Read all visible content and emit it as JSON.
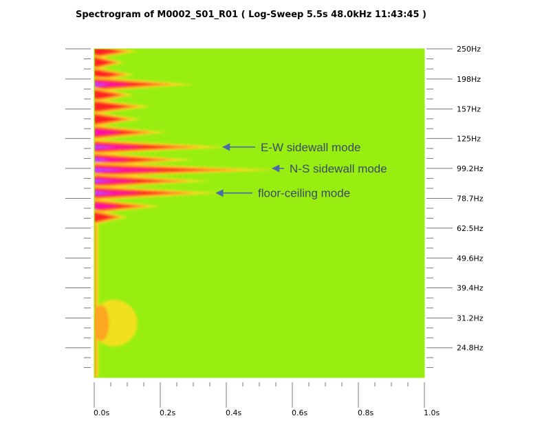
{
  "chart_data": {
    "type": "heatmap",
    "title": "Spectrogram of M0002_S01_R01 ( Log-Sweep 5.5s 48.0kHz 11:43:45 )",
    "xlabel": "",
    "ylabel": "",
    "x_ticks": [
      "0.0s",
      "0.2s",
      "0.4s",
      "0.6s",
      "0.8s",
      "1.0s"
    ],
    "x_tick_values": [
      0.0,
      0.2,
      0.4,
      0.6,
      0.8,
      1.0
    ],
    "xlim": [
      0.0,
      1.0
    ],
    "y_scale": "log",
    "y_ticks": [
      "250Hz",
      "198Hz",
      "157Hz",
      "125Hz",
      "99.2Hz",
      "78.7Hz",
      "62.5Hz",
      "49.6Hz",
      "39.4Hz",
      "31.2Hz",
      "24.8Hz"
    ],
    "y_tick_values": [
      250,
      198,
      157,
      125,
      99.2,
      78.7,
      62.5,
      49.6,
      39.4,
      31.2,
      24.8
    ],
    "ylim": [
      19.7,
      250
    ],
    "background_color": "#99ee11",
    "colors": {
      "floor": "#99ee11",
      "low": "#ffdd22",
      "mid": "#ff2222",
      "high": "#ff11aa",
      "peak": "#aa44ff"
    },
    "decay_ridges": [
      {
        "freq_hz": 245,
        "decay_s": 0.13
      },
      {
        "freq_hz": 225,
        "decay_s": 0.09
      },
      {
        "freq_hz": 205,
        "decay_s": 0.12
      },
      {
        "freq_hz": 190,
        "decay_s": 0.3
      },
      {
        "freq_hz": 175,
        "decay_s": 0.12
      },
      {
        "freq_hz": 160,
        "decay_s": 0.17
      },
      {
        "freq_hz": 145,
        "decay_s": 0.14
      },
      {
        "freq_hz": 131,
        "decay_s": 0.22
      },
      {
        "freq_hz": 117,
        "decay_s": 0.4
      },
      {
        "freq_hz": 106,
        "decay_s": 0.3
      },
      {
        "freq_hz": 98,
        "decay_s": 0.55
      },
      {
        "freq_hz": 90,
        "decay_s": 0.35
      },
      {
        "freq_hz": 82,
        "decay_s": 0.38
      },
      {
        "freq_hz": 74,
        "decay_s": 0.2
      },
      {
        "freq_hz": 68,
        "decay_s": 0.1
      }
    ],
    "annotations": [
      {
        "text": "E-W sidewall mode",
        "time_s": 0.39,
        "freq_hz": 117
      },
      {
        "text": "N-S sidewall mode",
        "time_s": 0.54,
        "freq_hz": 99.2
      },
      {
        "text": "floor-ceiling mode",
        "time_s": 0.37,
        "freq_hz": 82
      }
    ]
  }
}
